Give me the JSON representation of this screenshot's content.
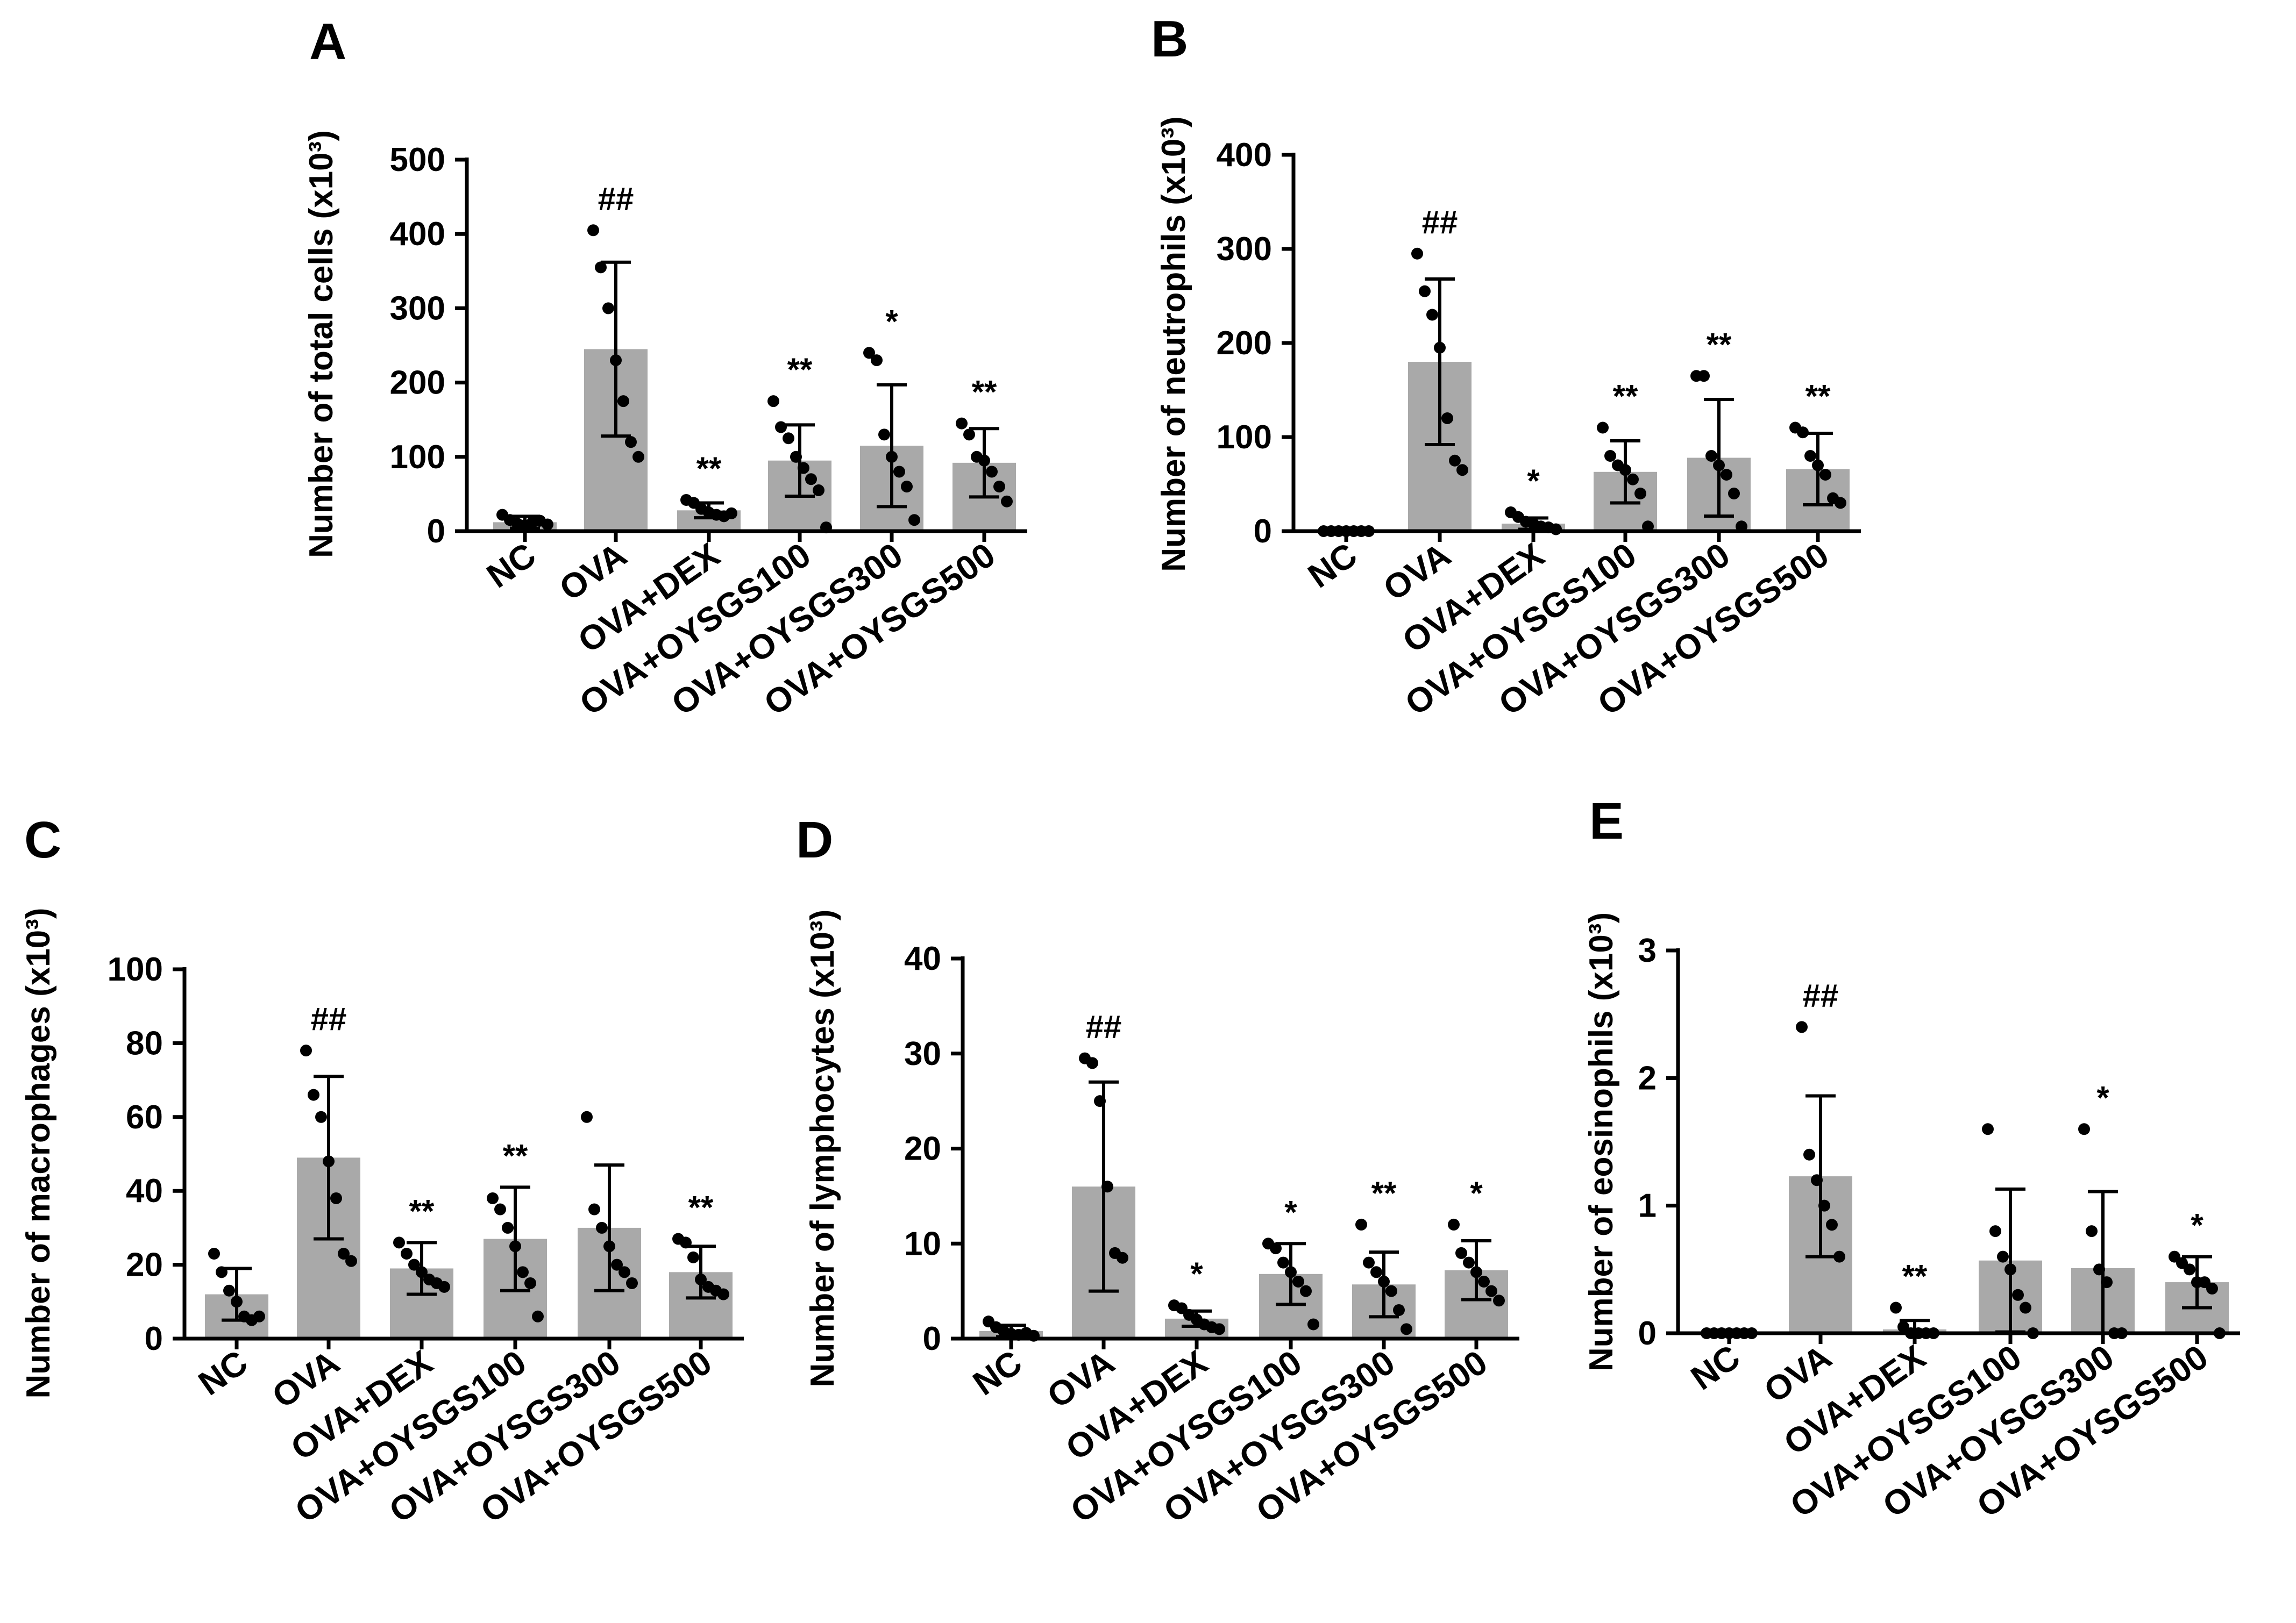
{
  "chart_data": [
    {
      "panel": "A",
      "type": "bar",
      "ylabel": "Number of total cells (x10³)",
      "categories": [
        "NC",
        "OVA",
        "OVA+DEX",
        "OVA+OYSGS100",
        "OVA+OYSGS300",
        "OVA+OYSGS500"
      ],
      "ylim": [
        0,
        500
      ],
      "yticks": [
        0,
        100,
        200,
        300,
        400,
        500
      ],
      "ytick_labels": [
        "0",
        "100",
        "200",
        "300",
        "400",
        "500"
      ],
      "values": [
        12,
        245,
        28,
        95,
        115,
        92
      ],
      "sd": [
        8,
        117,
        10,
        48,
        82,
        46
      ],
      "significance": [
        "",
        "##",
        "**",
        "**",
        "*",
        "**"
      ],
      "points": [
        [
          22,
          15,
          10,
          8,
          12,
          14,
          9
        ],
        [
          405,
          355,
          300,
          230,
          175,
          120,
          100
        ],
        [
          42,
          38,
          30,
          25,
          22,
          20,
          24
        ],
        [
          175,
          140,
          125,
          100,
          85,
          70,
          55,
          5
        ],
        [
          240,
          230,
          130,
          100,
          80,
          60,
          15
        ],
        [
          145,
          130,
          100,
          95,
          80,
          60,
          40
        ]
      ]
    },
    {
      "panel": "B",
      "type": "bar",
      "ylabel": "Number of neutrophils (x10³)",
      "categories": [
        "NC",
        "OVA",
        "OVA+DEX",
        "OVA+OYSGS100",
        "OVA+OYSGS300",
        "OVA+OYSGS500"
      ],
      "ylim": [
        0,
        400
      ],
      "yticks": [
        0,
        100,
        200,
        300,
        400
      ],
      "ytick_labels": [
        "0",
        "100",
        "200",
        "300",
        "400"
      ],
      "values": [
        0,
        180,
        8,
        63,
        78,
        66
      ],
      "sd": [
        0,
        88,
        6,
        33,
        62,
        38
      ],
      "significance": [
        "",
        "##",
        "*",
        "**",
        "**",
        "**"
      ],
      "points": [
        [
          0,
          0,
          0,
          0,
          0,
          0,
          0
        ],
        [
          295,
          255,
          230,
          195,
          120,
          75,
          65
        ],
        [
          20,
          15,
          10,
          8,
          5,
          4,
          2
        ],
        [
          110,
          80,
          70,
          65,
          55,
          40,
          5
        ],
        [
          165,
          165,
          80,
          70,
          60,
          40,
          5
        ],
        [
          110,
          105,
          80,
          70,
          60,
          35,
          30
        ]
      ]
    },
    {
      "panel": "C",
      "type": "bar",
      "ylabel": "Number of macrophages (x10³)",
      "categories": [
        "NC",
        "OVA",
        "OVA+DEX",
        "OVA+OYSGS100",
        "OVA+OYSGS300",
        "OVA+OYSGS500"
      ],
      "ylim": [
        0,
        100
      ],
      "yticks": [
        0,
        20,
        40,
        60,
        80,
        100
      ],
      "ytick_labels": [
        "0",
        "20",
        "40",
        "60",
        "80",
        "100"
      ],
      "values": [
        12,
        49,
        19,
        27,
        30,
        18
      ],
      "sd": [
        7,
        22,
        7,
        14,
        17,
        7
      ],
      "significance": [
        "",
        "##",
        "**",
        "**",
        "",
        "**"
      ],
      "points": [
        [
          23,
          18,
          13,
          10,
          6,
          5,
          6
        ],
        [
          78,
          66,
          60,
          48,
          38,
          23,
          21
        ],
        [
          26,
          23,
          20,
          18,
          16,
          15,
          14
        ],
        [
          38,
          35,
          30,
          25,
          18,
          15,
          6
        ],
        [
          60,
          35,
          30,
          25,
          20,
          18,
          15
        ],
        [
          27,
          26,
          22,
          16,
          14,
          13,
          12
        ]
      ]
    },
    {
      "panel": "D",
      "type": "bar",
      "ylabel": "Number of lymphocytes (x10³)",
      "categories": [
        "NC",
        "OVA",
        "OVA+DEX",
        "OVA+OYSGS100",
        "OVA+OYSGS300",
        "OVA+OYSGS500"
      ],
      "ylim": [
        0,
        40
      ],
      "yticks": [
        0,
        10,
        20,
        30,
        40
      ],
      "ytick_labels": [
        "0",
        "10",
        "20",
        "30",
        "40"
      ],
      "values": [
        0.8,
        16,
        2.1,
        6.8,
        5.7,
        7.2
      ],
      "sd": [
        0.6,
        11,
        0.8,
        3.2,
        3.4,
        3.1
      ],
      "significance": [
        "",
        "##",
        "*",
        "*",
        "**",
        "*"
      ],
      "points": [
        [
          1.8,
          1.2,
          0.8,
          0.5,
          0.4,
          0.6,
          0.3
        ],
        [
          29.5,
          29.0,
          25.0,
          16.0,
          9.0,
          8.5
        ],
        [
          3.5,
          3.2,
          2.5,
          2.0,
          1.5,
          1.2,
          1.0
        ],
        [
          10.0,
          9.5,
          8.0,
          7.0,
          6.0,
          5.0,
          1.5
        ],
        [
          12.0,
          8.0,
          7.0,
          6.0,
          5.0,
          3.0,
          1.0
        ],
        [
          12.0,
          9.0,
          8.0,
          7.0,
          6.0,
          5.0,
          4.0
        ]
      ]
    },
    {
      "panel": "E",
      "type": "bar",
      "ylabel": "Number of eosinophils (x10³)",
      "categories": [
        "NC",
        "OVA",
        "OVA+DEX",
        "OVA+OYSGS100",
        "OVA+OYSGS300",
        "OVA+OYSGS500"
      ],
      "ylim": [
        0,
        3
      ],
      "yticks": [
        0,
        1,
        2,
        3
      ],
      "ytick_labels": [
        "0",
        "1",
        "2",
        "3"
      ],
      "values": [
        0,
        1.23,
        0.03,
        0.57,
        0.51,
        0.4
      ],
      "sd": [
        0,
        0.63,
        0.07,
        0.56,
        0.6,
        0.2
      ],
      "significance": [
        "",
        "##",
        "**",
        "",
        "*",
        "*"
      ],
      "points": [
        [
          0,
          0,
          0,
          0,
          0,
          0,
          0
        ],
        [
          2.4,
          1.4,
          1.2,
          1.0,
          0.85,
          0.6
        ],
        [
          0.2,
          0.05,
          0.0,
          0.0,
          0.0,
          0.0
        ],
        [
          1.6,
          0.8,
          0.6,
          0.5,
          0.3,
          0.2,
          0.0
        ],
        [
          1.6,
          0.8,
          0.5,
          0.4,
          0.0,
          0.0
        ],
        [
          0.6,
          0.55,
          0.5,
          0.4,
          0.4,
          0.35,
          0.0
        ]
      ]
    }
  ]
}
